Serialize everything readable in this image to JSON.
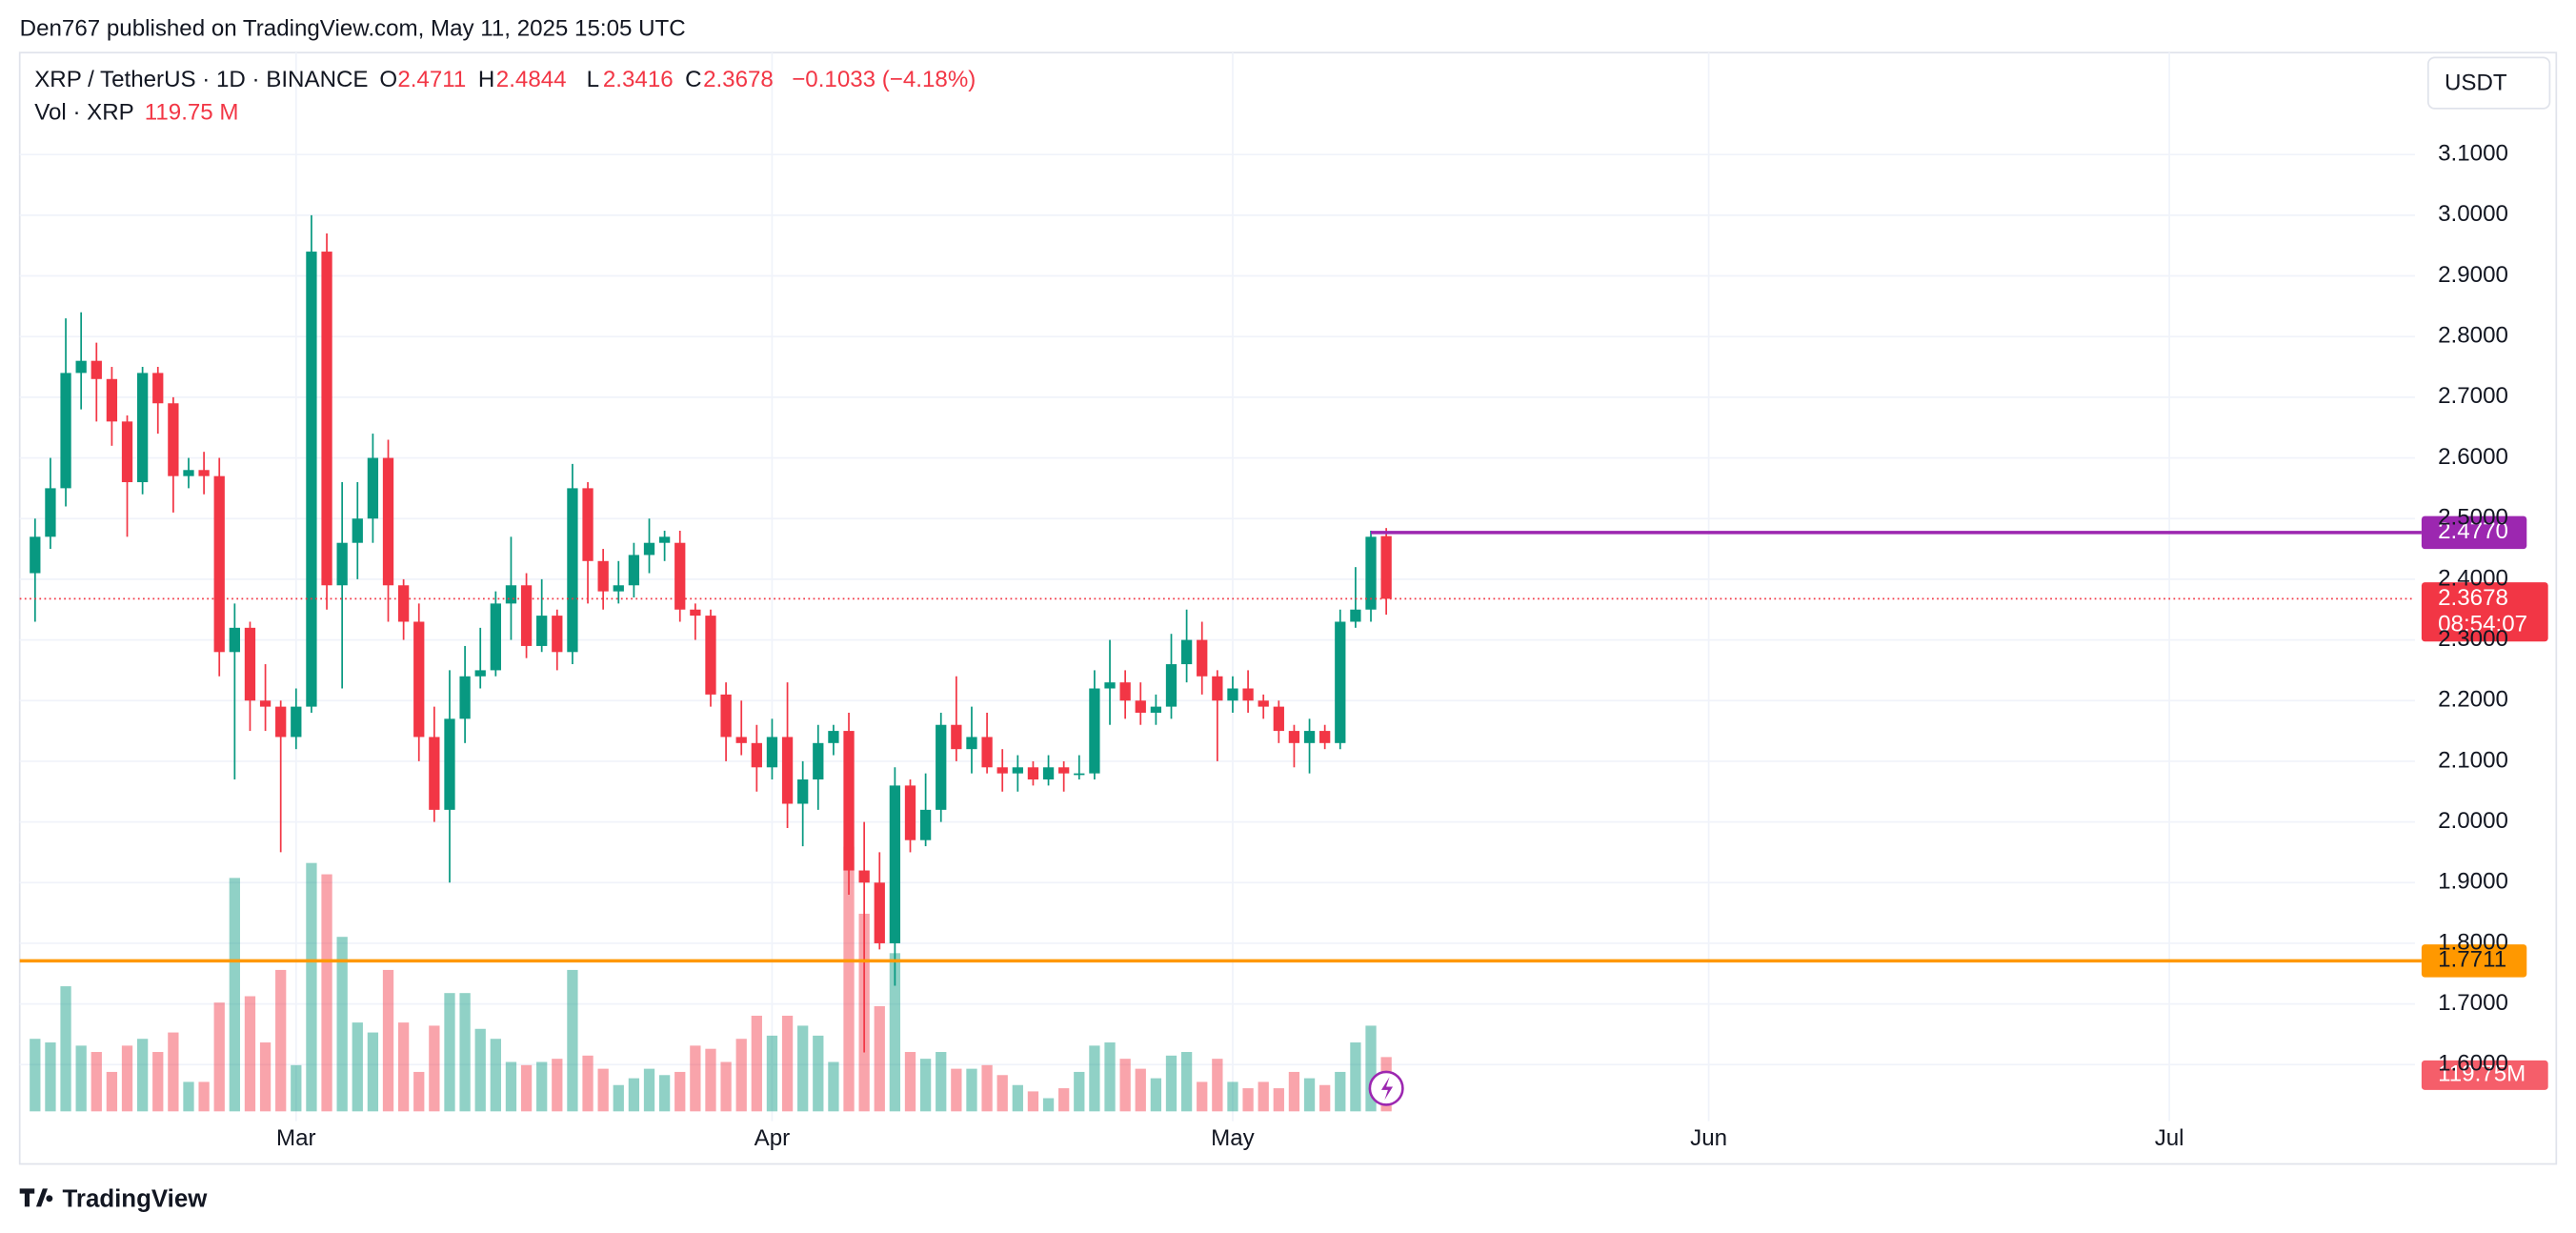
{
  "header": {
    "published": "Den767 published on TradingView.com, May 11, 2025 15:05 UTC",
    "currency_button": "USDT",
    "brand": "TradingView"
  },
  "chart_data": {
    "type": "candlestick",
    "legend": {
      "symbol": "XRP / TetherUS · 1D · BINANCE",
      "o": "O",
      "h": "H",
      "l": "L",
      "c": "C",
      "change": "−0.1033 (−4.18%)",
      "countdown": "08:54:07"
    },
    "x": [
      "2025-02-12",
      "2025-02-13",
      "2025-02-14",
      "2025-02-15",
      "2025-02-16",
      "2025-02-17",
      "2025-02-18",
      "2025-02-19",
      "2025-02-20",
      "2025-02-21",
      "2025-02-22",
      "2025-02-23",
      "2025-02-24",
      "2025-02-25",
      "2025-02-26",
      "2025-02-27",
      "2025-02-28",
      "2025-03-01",
      "2025-03-02",
      "2025-03-03",
      "2025-03-04",
      "2025-03-05",
      "2025-03-06",
      "2025-03-07",
      "2025-03-08",
      "2025-03-09",
      "2025-03-10",
      "2025-03-11",
      "2025-03-12",
      "2025-03-13",
      "2025-03-14",
      "2025-03-15",
      "2025-03-16",
      "2025-03-17",
      "2025-03-18",
      "2025-03-19",
      "2025-03-20",
      "2025-03-21",
      "2025-03-22",
      "2025-03-23",
      "2025-03-24",
      "2025-03-25",
      "2025-03-26",
      "2025-03-27",
      "2025-03-28",
      "2025-03-29",
      "2025-03-30",
      "2025-03-31",
      "2025-04-01",
      "2025-04-02",
      "2025-04-03",
      "2025-04-04",
      "2025-04-05",
      "2025-04-06",
      "2025-04-07",
      "2025-04-08",
      "2025-04-09",
      "2025-04-10",
      "2025-04-11",
      "2025-04-12",
      "2025-04-13",
      "2025-04-14",
      "2025-04-15",
      "2025-04-16",
      "2025-04-17",
      "2025-04-18",
      "2025-04-19",
      "2025-04-20",
      "2025-04-21",
      "2025-04-22",
      "2025-04-23",
      "2025-04-24",
      "2025-04-25",
      "2025-04-26",
      "2025-04-27",
      "2025-04-28",
      "2025-04-29",
      "2025-04-30",
      "2025-05-01",
      "2025-05-02",
      "2025-05-03",
      "2025-05-04",
      "2025-05-05",
      "2025-05-06",
      "2025-05-07",
      "2025-05-08",
      "2025-05-09",
      "2025-05-10",
      "2025-05-11"
    ],
    "series": [
      {
        "name": "XRP / TetherUS",
        "up_color": "#089981",
        "down_color": "#f23645",
        "open": [
          2.41,
          2.47,
          2.55,
          2.74,
          2.76,
          2.73,
          2.66,
          2.56,
          2.74,
          2.69,
          2.57,
          2.58,
          2.57,
          2.28,
          2.32,
          2.2,
          2.19,
          2.14,
          2.19,
          2.94,
          2.39,
          2.46,
          2.5,
          2.6,
          2.39,
          2.33,
          2.14,
          2.02,
          2.17,
          2.24,
          2.25,
          2.36,
          2.39,
          2.29,
          2.34,
          2.28,
          2.55,
          2.43,
          2.38,
          2.39,
          2.44,
          2.46,
          2.46,
          2.35,
          2.34,
          2.21,
          2.14,
          2.13,
          2.09,
          2.14,
          2.03,
          2.07,
          2.13,
          2.15,
          1.92,
          1.9,
          1.8,
          2.06,
          1.97,
          2.02,
          2.16,
          2.12,
          2.14,
          2.09,
          2.08,
          2.09,
          2.07,
          2.09,
          2.08,
          2.08,
          2.22,
          2.23,
          2.2,
          2.18,
          2.19,
          2.26,
          2.3,
          2.24,
          2.2,
          2.22,
          2.2,
          2.19,
          2.15,
          2.13,
          2.15,
          2.13,
          2.33,
          2.35,
          2.4711
        ],
        "high": [
          2.5,
          2.6,
          2.83,
          2.84,
          2.79,
          2.75,
          2.67,
          2.75,
          2.75,
          2.7,
          2.6,
          2.61,
          2.6,
          2.36,
          2.33,
          2.26,
          2.2,
          2.22,
          3.0,
          2.97,
          2.56,
          2.56,
          2.64,
          2.63,
          2.4,
          2.36,
          2.19,
          2.25,
          2.29,
          2.32,
          2.38,
          2.47,
          2.41,
          2.4,
          2.35,
          2.59,
          2.56,
          2.45,
          2.43,
          2.46,
          2.5,
          2.48,
          2.48,
          2.36,
          2.35,
          2.23,
          2.2,
          2.16,
          2.17,
          2.23,
          2.1,
          2.16,
          2.16,
          2.18,
          2.0,
          1.95,
          2.09,
          2.07,
          2.08,
          2.18,
          2.24,
          2.19,
          2.18,
          2.12,
          2.11,
          2.1,
          2.11,
          2.1,
          2.11,
          2.25,
          2.3,
          2.25,
          2.23,
          2.21,
          2.31,
          2.35,
          2.33,
          2.25,
          2.24,
          2.25,
          2.21,
          2.2,
          2.16,
          2.17,
          2.16,
          2.35,
          2.42,
          2.48,
          2.4844
        ],
        "low": [
          2.33,
          2.45,
          2.52,
          2.68,
          2.66,
          2.62,
          2.47,
          2.54,
          2.64,
          2.51,
          2.55,
          2.54,
          2.24,
          2.07,
          2.15,
          2.15,
          1.95,
          2.12,
          2.18,
          2.35,
          2.22,
          2.4,
          2.46,
          2.33,
          2.3,
          2.1,
          2.0,
          1.9,
          2.13,
          2.22,
          2.24,
          2.3,
          2.27,
          2.28,
          2.25,
          2.26,
          2.36,
          2.35,
          2.36,
          2.37,
          2.41,
          2.43,
          2.33,
          2.3,
          2.19,
          2.1,
          2.11,
          2.05,
          2.07,
          1.99,
          1.96,
          2.02,
          2.11,
          1.88,
          1.62,
          1.79,
          1.73,
          1.95,
          1.96,
          2.0,
          2.1,
          2.08,
          2.08,
          2.05,
          2.05,
          2.06,
          2.06,
          2.05,
          2.07,
          2.07,
          2.16,
          2.17,
          2.16,
          2.16,
          2.17,
          2.23,
          2.21,
          2.1,
          2.18,
          2.18,
          2.17,
          2.13,
          2.09,
          2.08,
          2.12,
          2.12,
          2.32,
          2.33,
          2.3416
        ],
        "close": [
          2.47,
          2.55,
          2.74,
          2.76,
          2.73,
          2.66,
          2.56,
          2.74,
          2.69,
          2.57,
          2.58,
          2.57,
          2.28,
          2.32,
          2.2,
          2.19,
          2.14,
          2.19,
          2.94,
          2.39,
          2.46,
          2.5,
          2.6,
          2.39,
          2.33,
          2.14,
          2.02,
          2.17,
          2.24,
          2.25,
          2.36,
          2.39,
          2.29,
          2.34,
          2.28,
          2.55,
          2.43,
          2.38,
          2.39,
          2.44,
          2.46,
          2.47,
          2.35,
          2.34,
          2.21,
          2.14,
          2.13,
          2.09,
          2.14,
          2.03,
          2.07,
          2.13,
          2.15,
          1.92,
          1.9,
          1.8,
          2.06,
          1.97,
          2.02,
          2.16,
          2.12,
          2.14,
          2.09,
          2.08,
          2.09,
          2.07,
          2.09,
          2.08,
          2.08,
          2.22,
          2.23,
          2.2,
          2.18,
          2.19,
          2.26,
          2.3,
          2.24,
          2.2,
          2.22,
          2.2,
          2.19,
          2.15,
          2.13,
          2.15,
          2.13,
          2.33,
          2.35,
          2.47,
          2.3678
        ]
      },
      {
        "name": "Vol · XRP",
        "last_label": "119.75 M",
        "axis_label": "119.75M",
        "values": [
          160,
          152,
          276,
          145,
          131,
          87,
          145,
          160,
          131,
          174,
          65,
          65,
          240,
          515,
          254,
          152,
          312,
          102,
          548,
          523,
          385,
          196,
          174,
          312,
          196,
          87,
          189,
          261,
          261,
          182,
          160,
          109,
          102,
          109,
          116,
          312,
          123,
          94,
          58,
          73,
          94,
          80,
          87,
          145,
          138,
          109,
          160,
          211,
          167,
          211,
          189,
          167,
          109,
          584,
          436,
          232,
          349,
          131,
          116,
          131,
          94,
          94,
          102,
          80,
          58,
          44,
          29,
          51,
          87,
          145,
          152,
          116,
          94,
          73,
          123,
          131,
          65,
          116,
          65,
          51,
          65,
          51,
          87,
          73,
          58,
          87,
          152,
          189,
          119.75
        ]
      }
    ],
    "hlines": [
      {
        "value": 2.477,
        "label": "2.4770",
        "color": "#9c27b0"
      },
      {
        "value": 1.7711,
        "color": "#ff9800"
      }
    ],
    "xlim": [
      "2025-02-11",
      "2025-07-17"
    ],
    "xticks": [
      {
        "value": "2025-03-01",
        "label": "Mar"
      },
      {
        "value": "2025-04-01",
        "label": "Apr"
      },
      {
        "value": "2025-05-01",
        "label": "May"
      },
      {
        "value": "2025-06-01",
        "label": "Jun"
      },
      {
        "value": "2025-07-01",
        "label": "Jul"
      }
    ],
    "ylim": [
      1.523,
      3.268
    ],
    "yticks": [
      {
        "value": 1.6,
        "label": "1.6000"
      },
      {
        "value": 1.7,
        "label": "1.7000"
      },
      {
        "value": 1.8,
        "label": "1.8000"
      },
      {
        "value": 1.9,
        "label": "1.9000"
      },
      {
        "value": 2.0,
        "label": "2.0000"
      },
      {
        "value": 2.1,
        "label": "2.1000"
      },
      {
        "value": 2.2,
        "label": "2.2000"
      },
      {
        "value": 2.3,
        "label": "2.3000"
      },
      {
        "value": 2.4,
        "label": "2.4000"
      },
      {
        "value": 2.5,
        "label": "2.5000"
      },
      {
        "value": 2.6,
        "label": "2.6000"
      },
      {
        "value": 2.7,
        "label": "2.7000"
      },
      {
        "value": 2.8,
        "label": "2.8000"
      },
      {
        "value": 2.9,
        "label": "2.9000"
      },
      {
        "value": 3.0,
        "label": "3.0000"
      },
      {
        "value": 3.1,
        "label": "3.1000"
      }
    ],
    "grid": true
  }
}
